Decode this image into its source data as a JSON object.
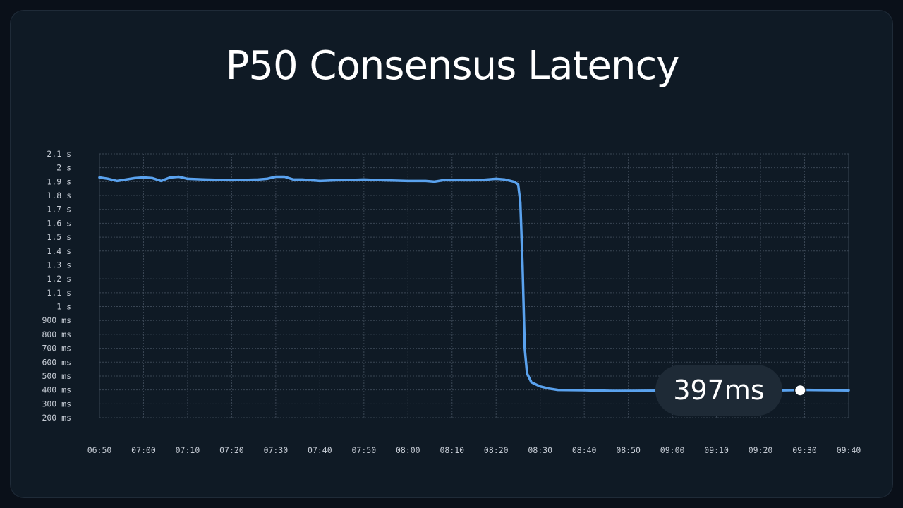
{
  "chart_data": {
    "type": "line",
    "title": "P50 Consensus Latency",
    "xlabel": "",
    "ylabel": "",
    "y_unit": "ms",
    "ylim": [
      200,
      2100
    ],
    "grid": true,
    "y_ticks": [
      {
        "value": 2100,
        "label": "2.1 s"
      },
      {
        "value": 2000,
        "label": "2 s"
      },
      {
        "value": 1900,
        "label": "1.9 s"
      },
      {
        "value": 1800,
        "label": "1.8 s"
      },
      {
        "value": 1700,
        "label": "1.7 s"
      },
      {
        "value": 1600,
        "label": "1.6 s"
      },
      {
        "value": 1500,
        "label": "1.5 s"
      },
      {
        "value": 1400,
        "label": "1.4 s"
      },
      {
        "value": 1300,
        "label": "1.3 s"
      },
      {
        "value": 1200,
        "label": "1.2 s"
      },
      {
        "value": 1100,
        "label": "1.1 s"
      },
      {
        "value": 1000,
        "label": "1 s"
      },
      {
        "value": 900,
        "label": "900 ms"
      },
      {
        "value": 800,
        "label": "800 ms"
      },
      {
        "value": 700,
        "label": "700 ms"
      },
      {
        "value": 600,
        "label": "600 ms"
      },
      {
        "value": 500,
        "label": "500 ms"
      },
      {
        "value": 400,
        "label": "400 ms"
      },
      {
        "value": 300,
        "label": "300 ms"
      },
      {
        "value": 200,
        "label": "200 ms"
      }
    ],
    "x_ticks": [
      "06:50",
      "07:00",
      "07:10",
      "07:20",
      "07:30",
      "07:40",
      "07:50",
      "08:00",
      "08:10",
      "08:20",
      "08:30",
      "08:40",
      "08:50",
      "09:00",
      "09:10",
      "09:20",
      "09:30",
      "09:40"
    ],
    "xlim": [
      "06:50",
      "09:40"
    ],
    "series": [
      {
        "color": "#5aa2ee",
        "points": [
          [
            "06:50",
            1930
          ],
          [
            "06:52",
            1920
          ],
          [
            "06:54",
            1905
          ],
          [
            "06:56",
            1915
          ],
          [
            "06:58",
            1925
          ],
          [
            "07:00",
            1930
          ],
          [
            "07:02",
            1925
          ],
          [
            "07:04",
            1905
          ],
          [
            "07:06",
            1930
          ],
          [
            "07:08",
            1935
          ],
          [
            "07:10",
            1920
          ],
          [
            "07:14",
            1915
          ],
          [
            "07:20",
            1910
          ],
          [
            "07:26",
            1915
          ],
          [
            "07:28",
            1920
          ],
          [
            "07:30",
            1935
          ],
          [
            "07:32",
            1935
          ],
          [
            "07:34",
            1915
          ],
          [
            "07:36",
            1915
          ],
          [
            "07:40",
            1905
          ],
          [
            "07:44",
            1910
          ],
          [
            "07:50",
            1915
          ],
          [
            "07:54",
            1910
          ],
          [
            "08:00",
            1905
          ],
          [
            "08:04",
            1905
          ],
          [
            "08:06",
            1900
          ],
          [
            "08:08",
            1910
          ],
          [
            "08:12",
            1910
          ],
          [
            "08:16",
            1910
          ],
          [
            "08:18",
            1915
          ],
          [
            "08:20",
            1920
          ],
          [
            "08:22",
            1915
          ],
          [
            "08:24",
            1900
          ],
          [
            "08:25",
            1880
          ],
          [
            "08:25.5",
            1750
          ],
          [
            "08:26",
            1300
          ],
          [
            "08:26.5",
            700
          ],
          [
            "08:27",
            520
          ],
          [
            "08:28",
            455
          ],
          [
            "08:30",
            425
          ],
          [
            "08:32",
            410
          ],
          [
            "08:34",
            400
          ],
          [
            "08:40",
            398
          ],
          [
            "08:46",
            393
          ],
          [
            "08:50",
            393
          ],
          [
            "09:00",
            395
          ],
          [
            "09:10",
            396
          ],
          [
            "09:20",
            397
          ],
          [
            "09:24",
            397
          ],
          [
            "09:26",
            398
          ],
          [
            "09:30",
            400
          ],
          [
            "09:40",
            397
          ]
        ]
      }
    ],
    "callout": {
      "label": "397ms",
      "time": "09:29",
      "value": 397
    }
  }
}
